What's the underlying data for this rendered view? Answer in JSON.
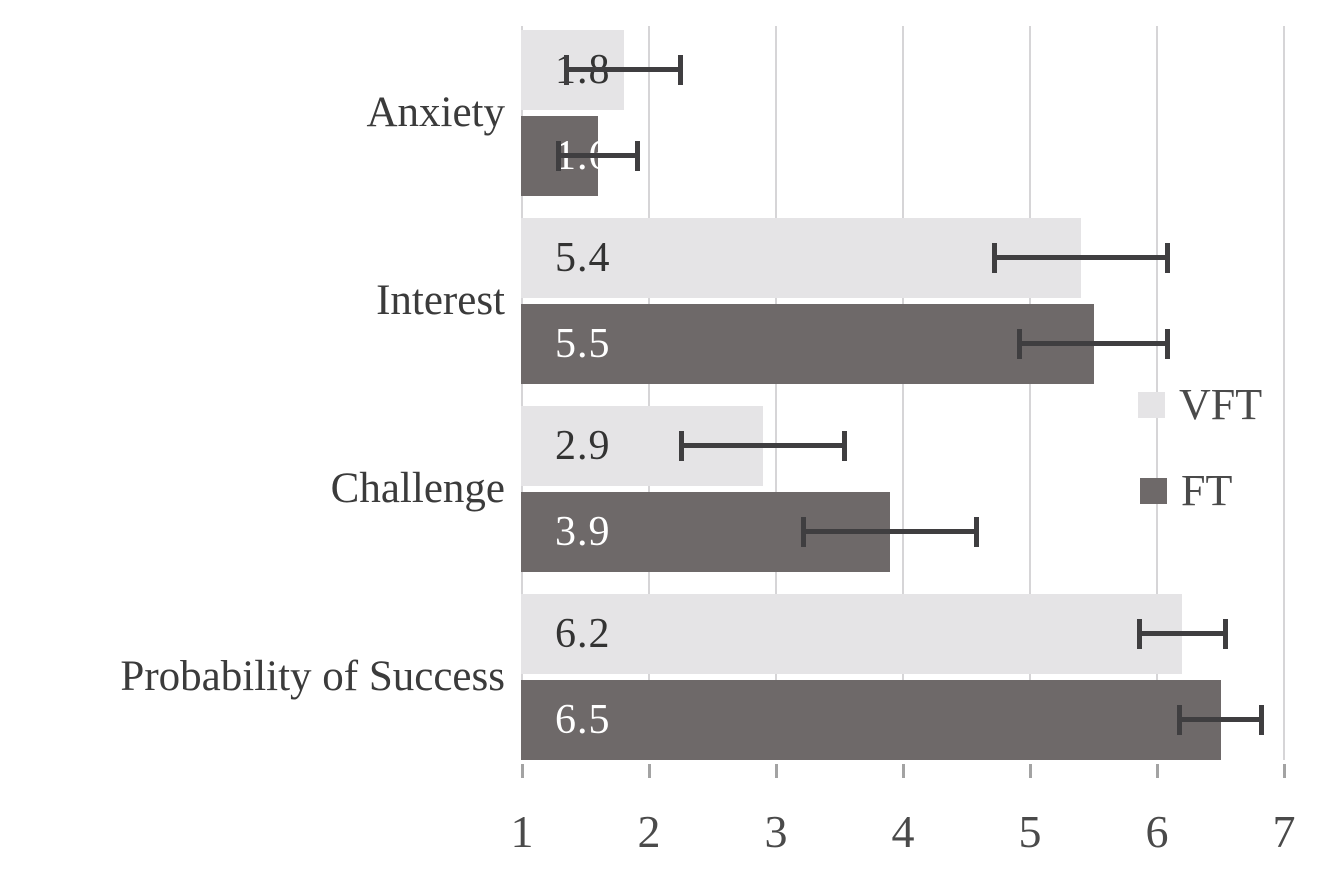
{
  "chart_data": {
    "type": "bar",
    "orientation": "horizontal",
    "title": "",
    "categories": [
      "Anxiety",
      "Interest",
      "Challenge",
      "Probability of Success"
    ],
    "series": [
      {
        "name": "VFT",
        "color": "#e5e4e6",
        "value_label_color": "#333333",
        "values": [
          1.8,
          5.4,
          2.9,
          6.2
        ],
        "value_labels": [
          "1.8",
          "5.4",
          "2.9",
          "6.2"
        ],
        "errors": [
          0.47,
          0.7,
          0.66,
          0.36
        ]
      },
      {
        "name": "FT",
        "color": "#6e6969",
        "value_label_color": "#ffffff",
        "values": [
          1.6,
          5.5,
          3.9,
          6.5
        ],
        "value_labels": [
          "1.6",
          "5.5",
          "3.9",
          "6.5"
        ],
        "errors": [
          0.33,
          0.6,
          0.7,
          0.34
        ]
      }
    ],
    "x_axis": {
      "min": 1,
      "max": 7,
      "tick_labels": [
        "1",
        "2",
        "3",
        "4",
        "5",
        "6",
        "7"
      ],
      "grid": true
    },
    "legend": {
      "position": "right",
      "entries": [
        {
          "label": "VFT",
          "color": "#e5e4e6"
        },
        {
          "label": "FT",
          "color": "#6e6969"
        }
      ]
    },
    "colors": {
      "error_bar": "#3f3e40",
      "gridline": "#d6d5d7",
      "category_text": "#3b3b3b",
      "axis_text": "#4a4a4a",
      "background": "#ffffff"
    }
  }
}
